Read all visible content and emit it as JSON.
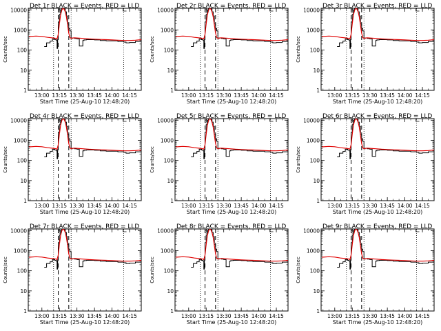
{
  "chart_data": {
    "type": "line",
    "layout": "3x3 grid of panels",
    "xlabel": "Start Time (25-Aug-10 12:48:20)",
    "ylabel": "Counts/sec",
    "x_ticks": [
      "13:00",
      "13:15",
      "13:30",
      "13:45",
      "14:00",
      "14:15"
    ],
    "y_ticks": [
      "1",
      "10",
      "100",
      "1000",
      "10000"
    ],
    "xlim": [
      "12:48:20",
      "14:25"
    ],
    "ylim": [
      1,
      12000
    ],
    "y_scale": "log",
    "dotted_vertical_lines": [
      "13:10",
      "13:25",
      "14:10"
    ],
    "dashed_vertical_lines": [
      "13:14",
      "13:23"
    ],
    "colors": {
      "events": "#000000",
      "lld": "#e00000"
    },
    "panels": [
      {
        "title": "Det 1r BLACK = Events, RED = LLD"
      },
      {
        "title": "Det 2r BLACK = Events, RED = LLD"
      },
      {
        "title": "Det 3r BLACK = Events, RED = LLD"
      },
      {
        "title": "Det 4r BLACK = Events, RED = LLD"
      },
      {
        "title": "Det 5r BLACK = Events, RED = LLD"
      },
      {
        "title": "Det 6r BLACK = Events, RED = LLD"
      },
      {
        "title": "Det 7r BLACK = Events, RED = LLD"
      },
      {
        "title": "Det 8r BLACK = Events, RED = LLD"
      },
      {
        "title": "Det 9r BLACK = Events, RED = LLD"
      }
    ],
    "series": [
      {
        "name": "Events",
        "x": [
          "13:02",
          "13:03",
          "13:04",
          "13:05",
          "13:07",
          "13:08",
          "13:09",
          "13:10",
          "13:11",
          "13:12",
          "13:12:30",
          "13:13",
          "13:13:30",
          "13:14",
          "13:15",
          "13:16",
          "13:17",
          "13:18",
          "13:19",
          "13:20",
          "13:21",
          "13:22",
          "13:23",
          "13:24",
          "13:25",
          "13:26",
          "13:28",
          "13:30",
          "13:32",
          "13:34",
          "13:35",
          "13:36",
          "13:38",
          "13:40",
          "13:45",
          "13:50",
          "13:55",
          "14:00",
          "14:05",
          "14:10",
          "14:12",
          "14:15",
          "14:20",
          "14:25"
        ],
        "y": [
          150,
          150,
          230,
          230,
          280,
          280,
          360,
          360,
          330,
          320,
          300,
          120,
          350,
          2500,
          6000,
          10000,
          12000,
          12000,
          11000,
          8000,
          5000,
          2000,
          1200,
          900,
          380,
          400,
          380,
          360,
          160,
          160,
          300,
          320,
          330,
          330,
          320,
          300,
          290,
          290,
          270,
          250,
          230,
          240,
          270,
          280
        ]
      },
      {
        "name": "LLD",
        "x": [
          "12:49",
          "12:55",
          "13:00",
          "13:05",
          "13:10",
          "13:12",
          "13:13",
          "13:14",
          "13:15",
          "13:16",
          "13:17",
          "13:18",
          "13:19",
          "13:20",
          "13:21",
          "13:22",
          "13:23",
          "13:24",
          "13:25",
          "13:26",
          "13:28",
          "13:30",
          "13:35",
          "13:40",
          "13:45",
          "13:50",
          "13:55",
          "14:00",
          "14:05",
          "14:10",
          "14:15",
          "14:20",
          "14:25"
        ],
        "y": [
          470,
          500,
          480,
          430,
          400,
          380,
          360,
          600,
          2000,
          5500,
          9500,
          12000,
          11000,
          8000,
          4500,
          1800,
          700,
          420,
          380,
          400,
          410,
          400,
          380,
          360,
          350,
          340,
          330,
          320,
          310,
          300,
          300,
          310,
          330
        ]
      }
    ]
  }
}
